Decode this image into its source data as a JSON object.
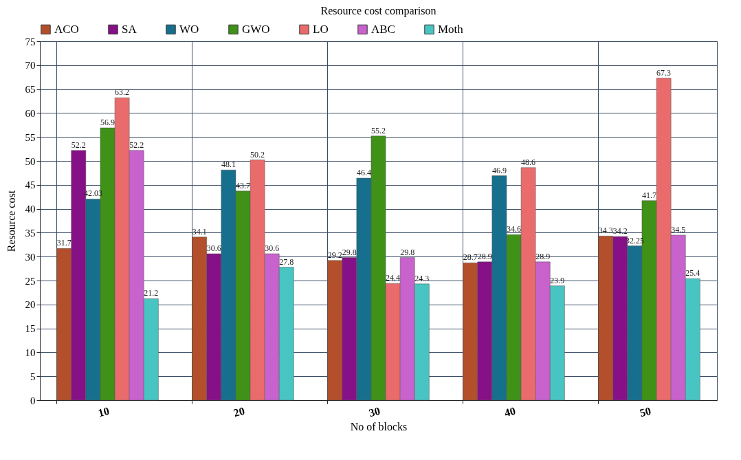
{
  "chart_data": {
    "type": "bar",
    "title": "Resource cost comparison",
    "xlabel": "No of blocks",
    "ylabel": "Resource cost",
    "categories": [
      "10",
      "20",
      "30",
      "40",
      "50"
    ],
    "series": [
      {
        "name": "ACO",
        "color": "#b34f2a",
        "values": [
          31.7,
          34.1,
          29.2,
          28.7,
          34.3
        ]
      },
      {
        "name": "SA",
        "color": "#861186",
        "values": [
          52.2,
          30.6,
          29.8,
          28.9,
          34.2
        ]
      },
      {
        "name": "WO",
        "color": "#166f8c",
        "values": [
          42.03,
          48.1,
          46.4,
          46.9,
          32.25
        ]
      },
      {
        "name": "GWO",
        "color": "#3f9118",
        "values": [
          56.9,
          43.7,
          55.2,
          34.6,
          41.7
        ]
      },
      {
        "name": "LO",
        "color": "#ea6b6b",
        "values": [
          63.2,
          50.2,
          24.4,
          48.6,
          67.3
        ]
      },
      {
        "name": "ABC",
        "color": "#c862cc",
        "values": [
          52.2,
          30.6,
          29.8,
          28.9,
          34.5
        ]
      },
      {
        "name": "Moth",
        "color": "#48c4c2",
        "values": [
          21.2,
          27.8,
          24.3,
          23.9,
          25.4
        ]
      }
    ],
    "ylim": [
      0,
      75
    ],
    "yticks": [
      0,
      5,
      10,
      15,
      20,
      25,
      30,
      35,
      40,
      45,
      50,
      55,
      60,
      65,
      70,
      75
    ],
    "grid": true,
    "legend": "top left",
    "data_labels": true
  }
}
